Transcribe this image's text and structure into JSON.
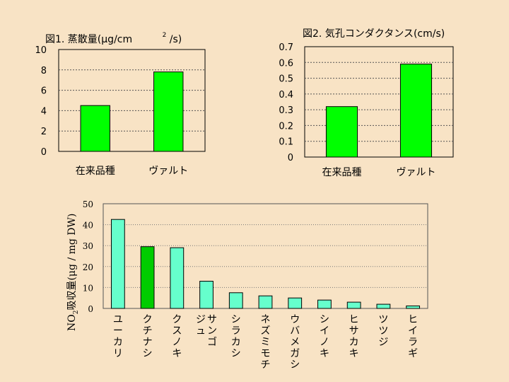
{
  "chart_data": [
    {
      "type": "bar",
      "title": "図1. 蒸散量(μg/cm²/s)",
      "title_parts": {
        "main": "図1. 蒸散量(μg/cm",
        "sup": "2",
        "tail": "/s)"
      },
      "categories": [
        "在来品種",
        "ヴァルト"
      ],
      "values": [
        4.5,
        7.8
      ],
      "ylim": [
        0,
        10
      ],
      "yticks": [
        "0",
        "2",
        "4",
        "6",
        "8",
        "10"
      ],
      "ytick_values": [
        0,
        2,
        4,
        6,
        8,
        10
      ],
      "xlabel": "",
      "ylabel": "",
      "bar_color": "#00ff00",
      "grid": true
    },
    {
      "type": "bar",
      "title": "図2. 気孔コンダクタンス(cm/s)",
      "categories": [
        "在来品種",
        "ヴァルト"
      ],
      "values": [
        0.32,
        0.59
      ],
      "ylim": [
        0,
        0.7
      ],
      "yticks": [
        "0",
        "0.1",
        "0.2",
        "0.3",
        "0.4",
        "0.5",
        "0.6",
        "0.7"
      ],
      "ytick_values": [
        0,
        0.1,
        0.2,
        0.3,
        0.4,
        0.5,
        0.6,
        0.7
      ],
      "xlabel": "",
      "ylabel": "",
      "bar_color": "#00ff00",
      "grid": true
    },
    {
      "type": "bar",
      "title": "",
      "categories": [
        "ユーカリ",
        "クチナシ",
        "クスノキ",
        "サンゴジュ",
        "シラカシ",
        "ネズミモチ",
        "ウバメガシ",
        "シイノキ",
        "ヒサカキ",
        "ツツジ",
        "ヒイラギ"
      ],
      "category_lines": [
        [
          "ユーカリ"
        ],
        [
          "クチナシ"
        ],
        [
          "クスノキ"
        ],
        [
          "サンゴ",
          "ジュ"
        ],
        [
          "シラカシ"
        ],
        [
          "ネズミモチ"
        ],
        [
          "ウバメガシ"
        ],
        [
          "シイノキ"
        ],
        [
          "ヒサカキ"
        ],
        [
          "ツツジ"
        ],
        [
          "ヒイラギ"
        ]
      ],
      "values": [
        42.5,
        29.5,
        29,
        13,
        7.5,
        6,
        5,
        4,
        3,
        2,
        1.2
      ],
      "ylim": [
        0,
        50
      ],
      "yticks": [
        "0",
        "10",
        "20",
        "30",
        "40",
        "50"
      ],
      "ytick_values": [
        0,
        10,
        20,
        30,
        40,
        50
      ],
      "ylabel": "NO2吸収量(μg / mg DW)",
      "ylabel_parts": {
        "pre": "NO",
        "sub": "2",
        "post": "吸収量(μg / mg DW)"
      },
      "xlabel": "",
      "bar_color": "#66ffcc",
      "highlight_index": 1,
      "highlight_color": "#00cc00",
      "grid": true
    }
  ]
}
